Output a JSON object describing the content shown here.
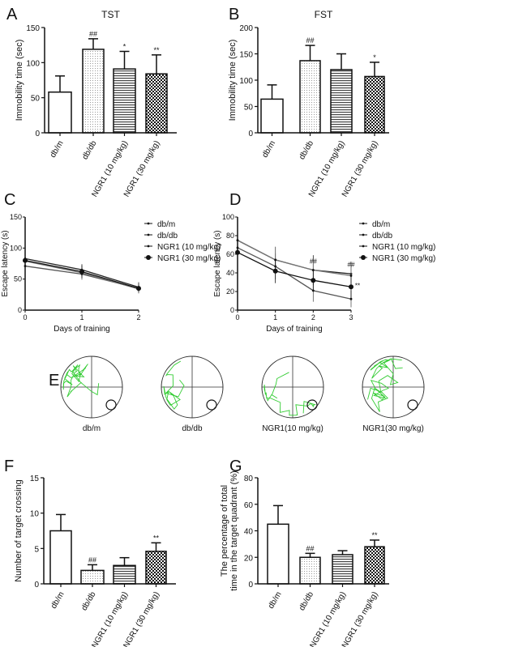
{
  "chart_data": [
    {
      "panel": "A",
      "type": "bar",
      "title": "TST",
      "ylabel": "Immobility time (sec)",
      "ylim": [
        0,
        150
      ],
      "yticks": [
        0,
        50,
        100,
        150
      ],
      "categories": [
        "db/m",
        "db/db",
        "NGR1 (10 mg/kg)",
        "NGR1 (30 mg/kg)"
      ],
      "values": [
        58,
        119,
        91,
        84
      ],
      "errors": [
        23,
        15,
        25,
        27
      ],
      "annotations": [
        "",
        "##",
        "*",
        "**"
      ]
    },
    {
      "panel": "B",
      "type": "bar",
      "title": "FST",
      "ylabel": "Immobility time (sec)",
      "ylim": [
        0,
        200
      ],
      "yticks": [
        0,
        50,
        100,
        150,
        200
      ],
      "categories": [
        "db/m",
        "db/db",
        "NGR1 (10 mg/kg)",
        "NGR1 (30 mg/kg)"
      ],
      "values": [
        64,
        137,
        120,
        107
      ],
      "errors": [
        27,
        29,
        30,
        27
      ],
      "annotations": [
        "",
        "##",
        "",
        "*"
      ]
    },
    {
      "panel": "C",
      "type": "line",
      "xlabel": "Days of training",
      "ylabel": "Escape latency (s)",
      "ylim": [
        0,
        150
      ],
      "yticks": [
        0,
        50,
        100,
        150
      ],
      "x": [
        0,
        1,
        2
      ],
      "legend": "right",
      "series": [
        {
          "name": "db/m",
          "values": [
            71,
            58,
            35
          ],
          "errors": [
            12,
            9,
            8
          ]
        },
        {
          "name": "db/db",
          "values": [
            83,
            65,
            37
          ],
          "errors": [
            14,
            9,
            8
          ]
        },
        {
          "name": "NGR1 (10 mg/kg)",
          "values": [
            79,
            60,
            34
          ],
          "errors": [
            13,
            10,
            7
          ]
        },
        {
          "name": "NGR1 (30 mg/kg)",
          "values": [
            80,
            62,
            35
          ],
          "errors": [
            15,
            10,
            6
          ]
        }
      ],
      "annotations": []
    },
    {
      "panel": "D",
      "type": "line",
      "xlabel": "Days of training",
      "ylabel": "Escape latency (s)",
      "ylim": [
        0,
        100
      ],
      "yticks": [
        0,
        20,
        40,
        60,
        80,
        100
      ],
      "x": [
        0,
        1,
        2,
        3
      ],
      "legend": "right",
      "series": [
        {
          "name": "db/m",
          "values": [
            67,
            47,
            21,
            12
          ],
          "errors": [
            18,
            14,
            12,
            9
          ]
        },
        {
          "name": "db/db",
          "values": [
            75,
            54,
            43,
            39
          ],
          "errors": [
            16,
            14,
            16,
            13
          ]
        },
        {
          "name": "NGR1 (10 mg/kg)",
          "values": [
            75,
            54,
            43,
            37
          ],
          "errors": [
            16,
            14,
            10,
            11
          ]
        },
        {
          "name": "NGR1 (30 mg/kg)",
          "values": [
            62,
            42,
            32,
            25
          ],
          "errors": [
            20,
            13,
            11,
            12
          ]
        }
      ],
      "annotations": [
        {
          "x": 2,
          "text": "##"
        },
        {
          "x": 3,
          "text": "##"
        },
        {
          "x": 3,
          "text": "**"
        }
      ]
    },
    {
      "panel": "F",
      "type": "bar",
      "title": "",
      "ylabel": "Number of target crossing",
      "ylim": [
        0,
        15
      ],
      "yticks": [
        0,
        5,
        10,
        15
      ],
      "categories": [
        "db/m",
        "db/db",
        "NGR1 (10 mg/kg)",
        "NGR1 (30 mg/kg)"
      ],
      "values": [
        7.5,
        1.9,
        2.6,
        4.6
      ],
      "errors": [
        2.3,
        0.8,
        1.1,
        1.2
      ],
      "annotations": [
        "",
        "##",
        "",
        "**"
      ]
    },
    {
      "panel": "G",
      "type": "bar",
      "title": "",
      "ylabel": "The percentage of total",
      "ylabel2": "time in the target quadrant (%)",
      "ylim": [
        0,
        80
      ],
      "yticks": [
        0,
        20,
        40,
        60,
        80
      ],
      "categories": [
        "db/m",
        "db/db",
        "NGR1 (10 mg/kg)",
        "NGR1 (30 mg/kg)"
      ],
      "values": [
        45,
        20,
        22,
        28
      ],
      "errors": [
        14,
        3,
        3,
        5
      ],
      "annotations": [
        "",
        "##",
        "",
        "**"
      ]
    }
  ],
  "maze": {
    "panel": "E",
    "labels": [
      "db/m",
      "db/db",
      "NGR1(10 mg/kg)",
      "NGR1(30 mg/kg)"
    ],
    "path_color": "#33cc33"
  }
}
